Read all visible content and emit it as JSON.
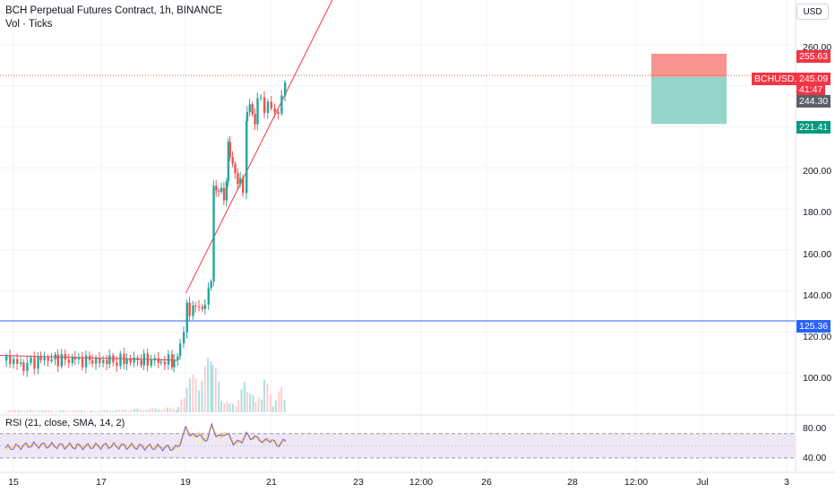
{
  "header": {
    "title": "BCH Perpetual Futures Contract, 1h, BINANCE",
    "volume_label": "Vol · Ticks"
  },
  "rsi": {
    "label": "RSI (21, close, SMA, 14, 2)",
    "levels": [
      "80.00",
      "40.00"
    ]
  },
  "currency_button": "USD",
  "price_axis": {
    "ticks": [
      "260.00",
      "200.00",
      "180.00",
      "160.00",
      "140.00",
      "120.00",
      "100.00"
    ]
  },
  "tags": {
    "stop_price": "255.63",
    "symbol": "BCHUSD.P",
    "last_price": "245.09",
    "countdown": "41:47",
    "entry_price": "244.30",
    "target_price": "221.41",
    "hline_price": "125.36"
  },
  "time_axis": {
    "ticks": [
      "15",
      "17",
      "19",
      "21",
      "23",
      "12:00",
      "26",
      "28",
      "12:00",
      "Jul",
      "3"
    ]
  },
  "colors": {
    "up": "#26a69a",
    "down": "#ef5350",
    "hline": "#2962ff",
    "trendline": "#f23645",
    "stop_zone": "#f7948f",
    "target_zone": "#93d5cb",
    "rsi_line": "#7e57c2",
    "rsi_ma": "#fdd835",
    "rsi_band": "#ede7f6"
  },
  "chart_data": {
    "type": "candlestick",
    "series": [
      {
        "name": "BCHUSD.P",
        "values": [
          [
            0,
            106,
            108
          ],
          [
            2,
            102.5,
            105
          ],
          [
            4,
            106,
            107.5
          ],
          [
            6,
            106.5,
            107
          ],
          [
            8,
            106,
            106.5
          ],
          [
            10,
            105.5,
            106
          ],
          [
            12,
            105,
            106
          ],
          [
            14,
            106,
            106.5
          ],
          [
            16,
            105.8,
            106.2
          ],
          [
            18,
            105.5,
            106.5
          ],
          [
            19.5,
            104.5,
            106
          ],
          [
            20.2,
            110,
            112
          ],
          [
            21,
            132,
            135
          ],
          [
            21.3,
            126.5,
            130
          ],
          [
            21.7,
            130,
            133.5
          ],
          [
            22,
            134,
            137
          ],
          [
            22.4,
            130,
            133
          ],
          [
            22.8,
            128,
            131
          ],
          [
            23.1,
            132,
            134
          ],
          [
            23.5,
            141,
            143.5
          ],
          [
            23.8,
            143,
            144.5
          ],
          [
            24.1,
            190,
            192
          ],
          [
            24.4,
            186,
            188
          ],
          [
            24.7,
            191,
            193
          ],
          [
            25,
            187,
            190
          ],
          [
            25.3,
            183,
            186
          ],
          [
            25.6,
            190,
            193
          ],
          [
            25.8,
            210,
            213
          ],
          [
            26,
            207,
            210
          ],
          [
            26.3,
            200,
            203
          ],
          [
            26.6,
            195,
            198
          ],
          [
            26.9,
            190,
            193
          ],
          [
            27.2,
            193,
            196
          ],
          [
            27.5,
            190,
            192
          ],
          [
            28,
            225,
            228
          ],
          [
            28.3,
            229,
            232
          ],
          [
            28.6,
            225,
            228
          ],
          [
            28.9,
            222,
            226
          ],
          [
            29.2,
            230,
            232
          ],
          [
            29.6,
            234,
            236
          ],
          [
            30,
            226,
            229
          ],
          [
            30.4,
            231,
            233
          ],
          [
            30.8,
            228,
            230
          ],
          [
            31.2,
            225,
            227
          ],
          [
            31.6,
            228,
            231
          ],
          [
            32,
            231,
            233
          ],
          [
            32.4,
            241,
            244
          ],
          [
            32.7,
            244,
            246
          ]
        ]
      },
      {
        "name": "RSI",
        "values": [
          [
            0,
            52
          ],
          [
            3,
            56
          ],
          [
            6,
            55
          ],
          [
            9,
            54
          ],
          [
            12,
            55
          ],
          [
            15,
            54
          ],
          [
            18,
            53
          ],
          [
            20,
            52
          ],
          [
            21,
            76
          ],
          [
            21.5,
            70
          ],
          [
            22,
            65
          ],
          [
            22.5,
            72
          ],
          [
            23,
            60
          ],
          [
            23.5,
            66
          ],
          [
            24,
            78
          ],
          [
            24.5,
            70
          ],
          [
            25,
            64
          ],
          [
            25.5,
            72
          ],
          [
            26,
            66
          ],
          [
            26.5,
            60
          ],
          [
            27,
            58
          ],
          [
            27.5,
            62
          ],
          [
            28,
            68
          ],
          [
            28.5,
            66
          ],
          [
            29,
            64
          ],
          [
            29.5,
            65
          ],
          [
            30,
            58
          ],
          [
            30.5,
            64
          ],
          [
            31,
            60
          ],
          [
            31.5,
            58
          ],
          [
            32,
            56
          ],
          [
            32.7,
            65
          ]
        ]
      }
    ],
    "price_range": [
      95,
      263
    ],
    "rsi_range": [
      30,
      84
    ],
    "levels": {
      "hline": 125.36,
      "entry": 244.3,
      "stop": 255.63,
      "target": 221.41,
      "last": 245.09
    },
    "trendline": [
      [
        21,
        139
      ],
      [
        33.5,
        244
      ]
    ],
    "volume": [
      [
        0,
        3
      ],
      [
        10,
        2
      ],
      [
        20,
        6
      ],
      [
        21,
        36
      ],
      [
        24,
        66
      ],
      [
        25,
        22
      ],
      [
        26,
        10
      ],
      [
        27,
        16
      ],
      [
        28,
        44
      ],
      [
        29,
        12
      ],
      [
        30,
        42
      ],
      [
        31,
        14
      ],
      [
        32,
        30
      ],
      [
        32.6,
        12
      ]
    ],
    "grid": true
  }
}
